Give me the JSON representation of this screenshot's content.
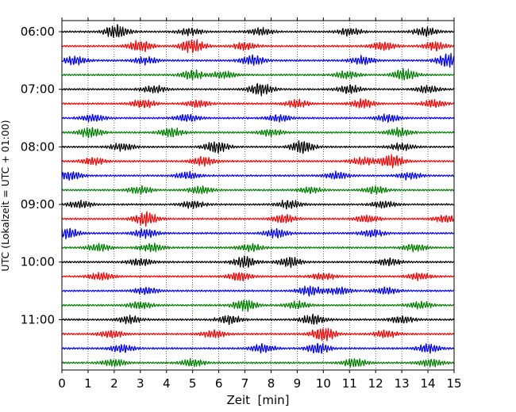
{
  "chart_data": {
    "type": "line",
    "subtype": "helicorder",
    "title": "",
    "xlabel": "Zeit  [min]",
    "ylabel": "UTC (Lokalzeit = UTC + 01:00)",
    "xlim": [
      0,
      15
    ],
    "xticks": [
      0,
      1,
      2,
      3,
      4,
      5,
      6,
      7,
      8,
      9,
      10,
      11,
      12,
      13,
      14,
      15
    ],
    "vertical_grid": true,
    "grid_style": "dotted",
    "row_minutes": 15,
    "start_time": "06:00",
    "row_count": 24,
    "y_tick_labels": [
      {
        "row": 0,
        "label": "06:00"
      },
      {
        "row": 4,
        "label": "07:00"
      },
      {
        "row": 8,
        "label": "08:00"
      },
      {
        "row": 12,
        "label": "09:00"
      },
      {
        "row": 16,
        "label": "10:00"
      },
      {
        "row": 20,
        "label": "11:00"
      }
    ],
    "trace_colors": [
      "#000000",
      "#ff0000",
      "#0000ff",
      "#008000"
    ],
    "bursts": [
      [
        {
          "t": 2.1,
          "a": 1.0
        },
        {
          "t": 4.9,
          "a": 0.5
        },
        {
          "t": 7.6,
          "a": 0.5
        },
        {
          "t": 11.0,
          "a": 0.5
        },
        {
          "t": 13.9,
          "a": 0.6
        }
      ],
      [
        {
          "t": 3.0,
          "a": 0.8
        },
        {
          "t": 5.0,
          "a": 1.0
        },
        {
          "t": 7.0,
          "a": 0.5
        },
        {
          "t": 12.3,
          "a": 0.6
        },
        {
          "t": 14.3,
          "a": 0.6
        }
      ],
      [
        {
          "t": 0.5,
          "a": 0.6
        },
        {
          "t": 3.2,
          "a": 0.5
        },
        {
          "t": 7.3,
          "a": 0.7
        },
        {
          "t": 11.5,
          "a": 0.6
        },
        {
          "t": 14.8,
          "a": 1.0
        }
      ],
      [
        {
          "t": 5.0,
          "a": 0.7
        },
        {
          "t": 6.2,
          "a": 0.5
        },
        {
          "t": 10.9,
          "a": 0.5
        },
        {
          "t": 13.1,
          "a": 0.8
        }
      ],
      [
        {
          "t": 3.5,
          "a": 0.5
        },
        {
          "t": 7.6,
          "a": 0.9
        },
        {
          "t": 11.0,
          "a": 0.6
        },
        {
          "t": 14.0,
          "a": 0.5
        }
      ],
      [
        {
          "t": 3.1,
          "a": 0.6
        },
        {
          "t": 5.2,
          "a": 0.5
        },
        {
          "t": 9.0,
          "a": 0.5
        },
        {
          "t": 11.5,
          "a": 0.6
        },
        {
          "t": 14.2,
          "a": 0.5
        }
      ],
      [
        {
          "t": 1.2,
          "a": 0.5
        },
        {
          "t": 4.8,
          "a": 0.5
        },
        {
          "t": 8.3,
          "a": 0.5
        },
        {
          "t": 12.5,
          "a": 0.5
        }
      ],
      [
        {
          "t": 1.1,
          "a": 0.7
        },
        {
          "t": 4.2,
          "a": 0.6
        },
        {
          "t": 8.0,
          "a": 0.5
        },
        {
          "t": 12.9,
          "a": 0.6
        }
      ],
      [
        {
          "t": 2.3,
          "a": 0.5
        },
        {
          "t": 5.9,
          "a": 0.8
        },
        {
          "t": 9.2,
          "a": 0.9
        },
        {
          "t": 13.0,
          "a": 0.5
        }
      ],
      [
        {
          "t": 1.2,
          "a": 0.5
        },
        {
          "t": 5.4,
          "a": 0.6
        },
        {
          "t": 11.5,
          "a": 0.5
        },
        {
          "t": 12.6,
          "a": 0.9
        }
      ],
      [
        {
          "t": 0.3,
          "a": 0.6
        },
        {
          "t": 4.8,
          "a": 0.5
        },
        {
          "t": 10.5,
          "a": 0.5
        },
        {
          "t": 13.3,
          "a": 0.5
        }
      ],
      [
        {
          "t": 3.0,
          "a": 0.5
        },
        {
          "t": 5.3,
          "a": 0.5
        },
        {
          "t": 9.5,
          "a": 0.4
        },
        {
          "t": 12.0,
          "a": 0.5
        }
      ],
      [
        {
          "t": 0.7,
          "a": 0.5
        },
        {
          "t": 5.0,
          "a": 0.5
        },
        {
          "t": 8.7,
          "a": 0.6
        },
        {
          "t": 12.3,
          "a": 0.5
        }
      ],
      [
        {
          "t": 3.2,
          "a": 1.0
        },
        {
          "t": 8.5,
          "a": 0.6
        },
        {
          "t": 11.7,
          "a": 0.5
        },
        {
          "t": 14.7,
          "a": 0.5
        }
      ],
      [
        {
          "t": 0.2,
          "a": 0.8
        },
        {
          "t": 3.2,
          "a": 0.6
        },
        {
          "t": 8.2,
          "a": 0.6
        },
        {
          "t": 11.9,
          "a": 0.5
        }
      ],
      [
        {
          "t": 1.4,
          "a": 0.5
        },
        {
          "t": 3.4,
          "a": 0.6
        },
        {
          "t": 7.2,
          "a": 0.5
        },
        {
          "t": 13.5,
          "a": 0.5
        }
      ],
      [
        {
          "t": 3.0,
          "a": 0.5
        },
        {
          "t": 7.0,
          "a": 0.8
        },
        {
          "t": 8.7,
          "a": 0.7
        },
        {
          "t": 12.5,
          "a": 0.5
        }
      ],
      [
        {
          "t": 1.5,
          "a": 0.5
        },
        {
          "t": 6.8,
          "a": 0.6
        },
        {
          "t": 10.0,
          "a": 0.5
        },
        {
          "t": 13.7,
          "a": 0.5
        }
      ],
      [
        {
          "t": 3.2,
          "a": 0.5
        },
        {
          "t": 9.5,
          "a": 0.7
        },
        {
          "t": 10.6,
          "a": 0.5
        },
        {
          "t": 12.4,
          "a": 0.5
        }
      ],
      [
        {
          "t": 3.0,
          "a": 0.5
        },
        {
          "t": 7.0,
          "a": 0.8
        },
        {
          "t": 9.0,
          "a": 0.5
        },
        {
          "t": 13.7,
          "a": 0.5
        }
      ],
      [
        {
          "t": 2.6,
          "a": 0.5
        },
        {
          "t": 6.4,
          "a": 0.6
        },
        {
          "t": 9.6,
          "a": 0.7
        },
        {
          "t": 13.0,
          "a": 0.5
        }
      ],
      [
        {
          "t": 1.9,
          "a": 0.5
        },
        {
          "t": 5.8,
          "a": 0.5
        },
        {
          "t": 10.0,
          "a": 1.0
        },
        {
          "t": 12.4,
          "a": 0.5
        }
      ],
      [
        {
          "t": 2.3,
          "a": 0.5
        },
        {
          "t": 7.7,
          "a": 0.6
        },
        {
          "t": 9.8,
          "a": 0.7
        },
        {
          "t": 14.0,
          "a": 0.6
        }
      ],
      [
        {
          "t": 2.0,
          "a": 0.5
        },
        {
          "t": 5.0,
          "a": 0.5
        },
        {
          "t": 11.2,
          "a": 0.6
        },
        {
          "t": 14.1,
          "a": 0.5
        }
      ]
    ]
  }
}
